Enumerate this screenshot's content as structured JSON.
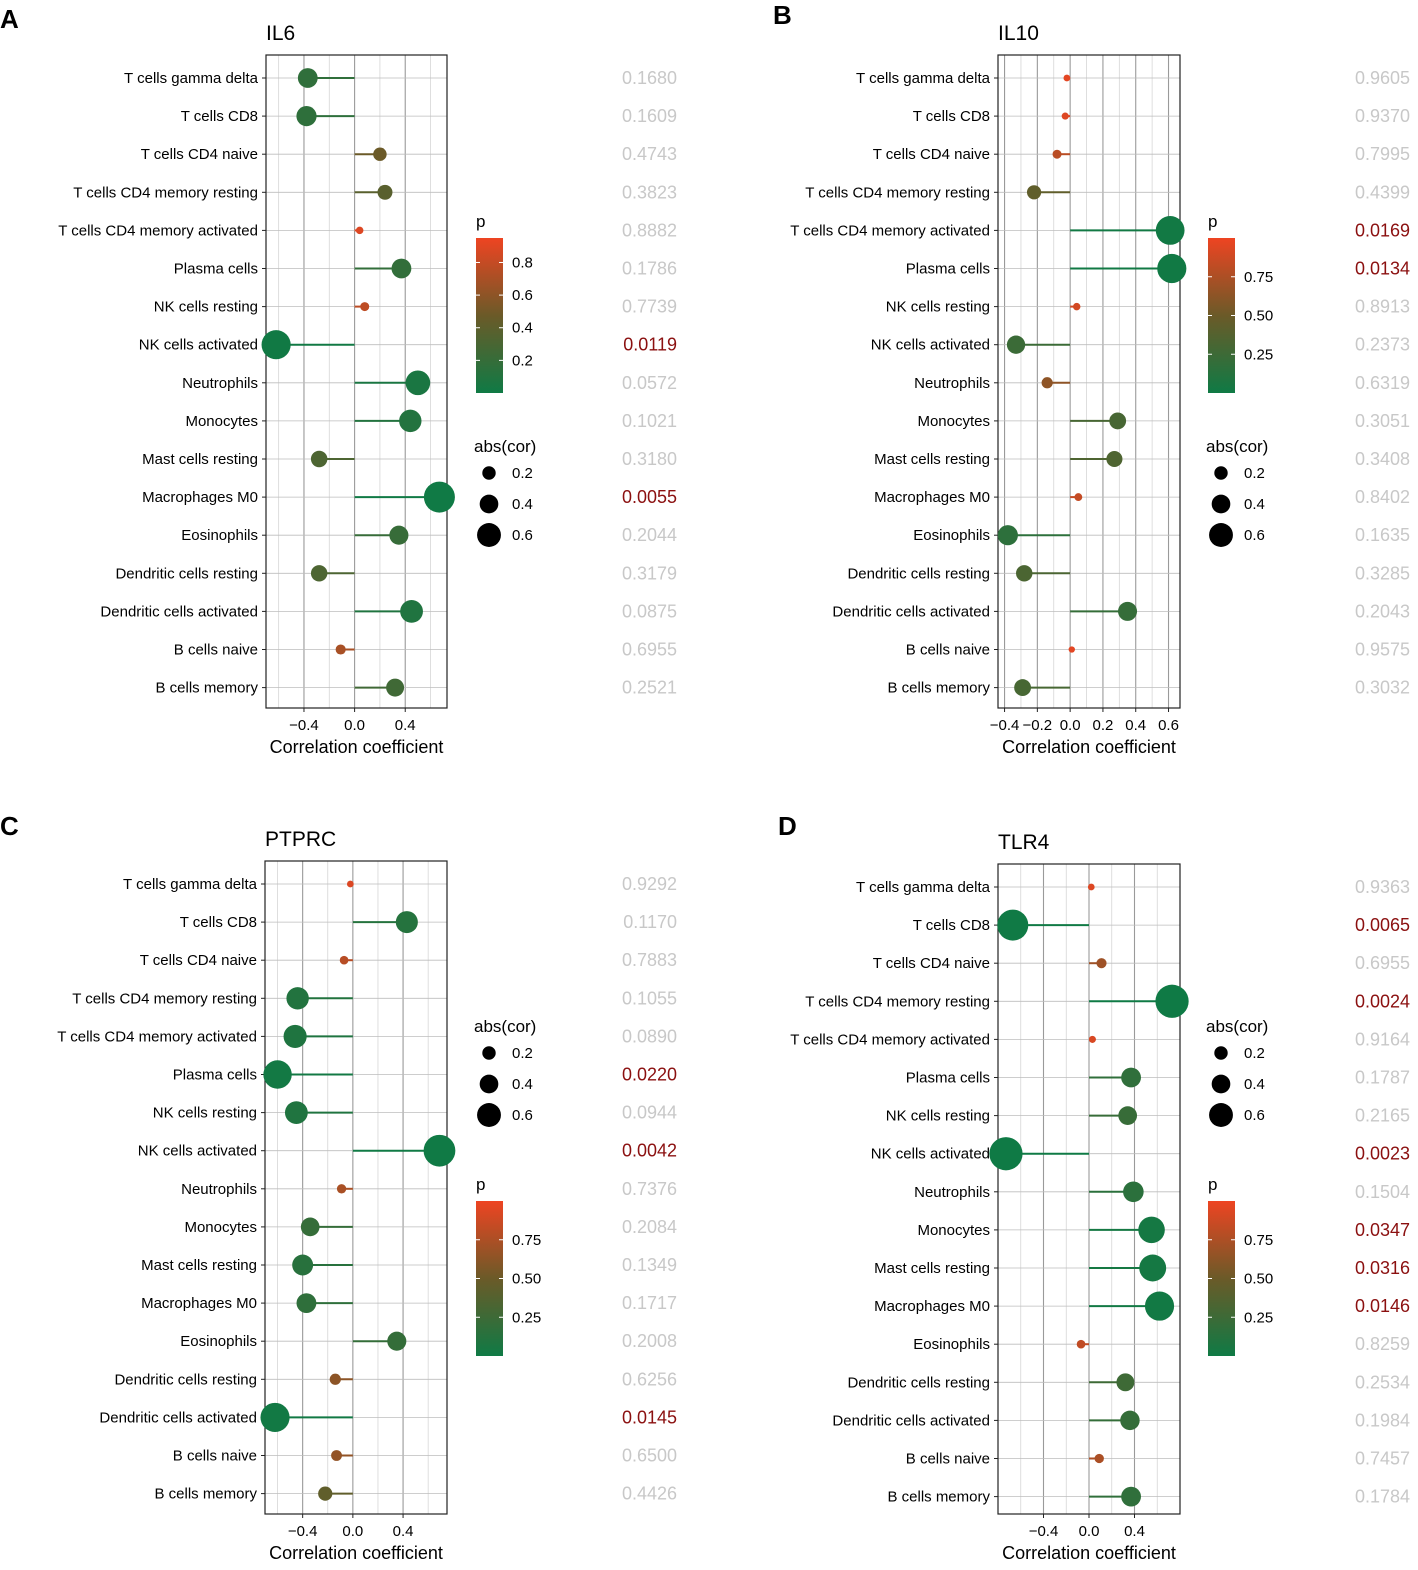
{
  "colors": {
    "p_high": "#ee4422",
    "p_mid": "#6b5a28",
    "p_low": "#0f7a45",
    "pval_significant": "#8b1010",
    "pval_nonsignificant": "#c8c8c8"
  },
  "chart_data": [
    {
      "panel": "A",
      "type": "lollipop",
      "title": "IL6",
      "xlabel": "Correlation coefficient",
      "xlim": [
        -0.7,
        0.73
      ],
      "xticks": [
        -0.4,
        0.0,
        0.4
      ],
      "xtick_labels": [
        "−0.4",
        "0.0",
        "0.4"
      ],
      "color_max": 0.95,
      "legend_order": [
        "p",
        "size"
      ],
      "p_legend": {
        "title": "p",
        "ticks": [
          0.8,
          0.6,
          0.4,
          0.2
        ],
        "tick_labels": [
          "0.8",
          "0.6",
          "0.4",
          "0.2"
        ]
      },
      "size_legend": {
        "title": "abs(cor)",
        "values": [
          0.2,
          0.4,
          0.6
        ],
        "labels": [
          "0.2",
          "0.4",
          "0.6"
        ]
      },
      "categories": [
        "T cells gamma delta",
        "T cells CD8",
        "T cells CD4 naive",
        "T cells CD4 memory resting",
        "T cells CD4 memory activated",
        "Plasma cells",
        "NK cells resting",
        "NK cells activated",
        "Neutrophils",
        "Monocytes",
        "Mast cells resting",
        "Macrophages M0",
        "Eosinophils",
        "Dendritic cells resting",
        "Dendritic cells activated",
        "B cells naive",
        "B cells memory"
      ],
      "cor": [
        -0.37,
        -0.38,
        0.2,
        0.24,
        0.04,
        0.37,
        0.08,
        -0.62,
        0.5,
        0.44,
        -0.28,
        0.67,
        0.35,
        -0.28,
        0.45,
        -0.11,
        0.32
      ],
      "p_values": [
        0.168,
        0.1609,
        0.4743,
        0.3823,
        0.8882,
        0.1786,
        0.7739,
        0.0119,
        0.0572,
        0.1021,
        0.318,
        0.0055,
        0.2044,
        0.3179,
        0.0875,
        0.6955,
        0.2521
      ],
      "p_labels": [
        "0.1680",
        "0.1609",
        "0.4743",
        "0.3823",
        "0.8882",
        "0.1786",
        "0.7739",
        "0.0119",
        "0.0572",
        "0.1021",
        "0.3180",
        "0.0055",
        "0.2044",
        "0.3179",
        "0.0875",
        "0.6955",
        "0.2521"
      ]
    },
    {
      "panel": "B",
      "type": "lollipop",
      "title": "IL10",
      "xlabel": "Correlation coefficient",
      "xlim": [
        -0.44,
        0.67
      ],
      "xticks": [
        -0.4,
        -0.2,
        0.0,
        0.2,
        0.4,
        0.6
      ],
      "xtick_labels": [
        "−0.4",
        "−0.2",
        "0.0",
        "0.2",
        "0.4",
        "0.6"
      ],
      "color_max": 1.0,
      "legend_order": [
        "p",
        "size"
      ],
      "p_legend": {
        "title": "p",
        "ticks": [
          0.75,
          0.5,
          0.25
        ],
        "tick_labels": [
          "0.75",
          "0.50",
          "0.25"
        ]
      },
      "size_legend": {
        "title": "abs(cor)",
        "values": [
          0.2,
          0.4,
          0.6
        ],
        "labels": [
          "0.2",
          "0.4",
          "0.6"
        ]
      },
      "categories": [
        "T cells gamma delta",
        "T cells CD8",
        "T cells CD4 naive",
        "T cells CD4 memory resting",
        "T cells CD4 memory activated",
        "Plasma cells",
        "NK cells resting",
        "NK cells activated",
        "Neutrophils",
        "Monocytes",
        "Mast cells resting",
        "Macrophages M0",
        "Eosinophils",
        "Dendritic cells resting",
        "Dendritic cells activated",
        "B cells naive",
        "B cells memory"
      ],
      "cor": [
        -0.02,
        -0.03,
        -0.08,
        -0.22,
        0.61,
        0.62,
        0.04,
        -0.33,
        -0.14,
        0.29,
        0.27,
        0.05,
        -0.38,
        -0.28,
        0.35,
        0.01,
        -0.29
      ],
      "p_values": [
        0.9605,
        0.937,
        0.7995,
        0.4399,
        0.0169,
        0.0134,
        0.8913,
        0.2373,
        0.6319,
        0.3051,
        0.3408,
        0.8402,
        0.1635,
        0.3285,
        0.2043,
        0.9575,
        0.3032
      ],
      "p_labels": [
        "0.9605",
        "0.9370",
        "0.7995",
        "0.4399",
        "0.0169",
        "0.0134",
        "0.8913",
        "0.2373",
        "0.6319",
        "0.3051",
        "0.3408",
        "0.8402",
        "0.1635",
        "0.3285",
        "0.2043",
        "0.9575",
        "0.3032"
      ]
    },
    {
      "panel": "C",
      "type": "lollipop",
      "title": "PTPRC",
      "xlabel": "Correlation coefficient",
      "xlim": [
        -0.7,
        0.75
      ],
      "xticks": [
        -0.4,
        0.0,
        0.4
      ],
      "xtick_labels": [
        "−0.4",
        "0.0",
        "0.4"
      ],
      "color_max": 1.0,
      "legend_order": [
        "size",
        "p"
      ],
      "p_legend": {
        "title": "p",
        "ticks": [
          0.75,
          0.5,
          0.25
        ],
        "tick_labels": [
          "0.75",
          "0.50",
          "0.25"
        ]
      },
      "size_legend": {
        "title": "abs(cor)",
        "values": [
          0.2,
          0.4,
          0.6
        ],
        "labels": [
          "0.2",
          "0.4",
          "0.6"
        ]
      },
      "categories": [
        "T cells gamma delta",
        "T cells CD8",
        "T cells CD4 naive",
        "T cells CD4 memory resting",
        "T cells CD4 memory activated",
        "Plasma cells",
        "NK cells resting",
        "NK cells activated",
        "Neutrophils",
        "Monocytes",
        "Mast cells resting",
        "Macrophages M0",
        "Eosinophils",
        "Dendritic cells resting",
        "Dendritic cells activated",
        "B cells naive",
        "B cells memory"
      ],
      "cor": [
        -0.02,
        0.43,
        -0.07,
        -0.44,
        -0.46,
        -0.6,
        -0.45,
        0.69,
        -0.09,
        -0.34,
        -0.4,
        -0.37,
        0.35,
        -0.14,
        -0.62,
        -0.13,
        -0.22
      ],
      "p_values": [
        0.9292,
        0.117,
        0.7883,
        0.1055,
        0.089,
        0.022,
        0.0944,
        0.0042,
        0.7376,
        0.2084,
        0.1349,
        0.1717,
        0.2008,
        0.6256,
        0.0145,
        0.65,
        0.4426
      ],
      "p_labels": [
        "0.9292",
        "0.1170",
        "0.7883",
        "0.1055",
        "0.0890",
        "0.0220",
        "0.0944",
        "0.0042",
        "0.7376",
        "0.2084",
        "0.1349",
        "0.1717",
        "0.2008",
        "0.6256",
        "0.0145",
        "0.6500",
        "0.4426"
      ]
    },
    {
      "panel": "D",
      "type": "lollipop",
      "title": "TLR4",
      "xlabel": "Correlation coefficient",
      "xlim": [
        -0.8,
        0.8
      ],
      "xticks": [
        -0.4,
        0.0,
        0.4
      ],
      "xtick_labels": [
        "−0.4",
        "0.0",
        "0.4"
      ],
      "color_max": 1.0,
      "legend_order": [
        "size",
        "p"
      ],
      "p_legend": {
        "title": "p",
        "ticks": [
          0.75,
          0.5,
          0.25
        ],
        "tick_labels": [
          "0.75",
          "0.50",
          "0.25"
        ]
      },
      "size_legend": {
        "title": "abs(cor)",
        "values": [
          0.2,
          0.4,
          0.6
        ],
        "labels": [
          "0.2",
          "0.4",
          "0.6"
        ]
      },
      "categories": [
        "T cells gamma delta",
        "T cells CD8",
        "T cells CD4 naive",
        "T cells CD4 memory resting",
        "T cells CD4 memory activated",
        "Plasma cells",
        "NK cells resting",
        "NK cells activated",
        "Neutrophils",
        "Monocytes",
        "Mast cells resting",
        "Macrophages M0",
        "Eosinophils",
        "Dendritic cells resting",
        "Dendritic cells activated",
        "B cells naive",
        "B cells memory"
      ],
      "cor": [
        0.02,
        -0.67,
        0.11,
        0.73,
        0.03,
        0.37,
        0.34,
        -0.73,
        0.39,
        0.55,
        0.56,
        0.62,
        -0.07,
        0.32,
        0.36,
        0.09,
        0.37
      ],
      "p_values": [
        0.9363,
        0.0065,
        0.6955,
        0.0024,
        0.9164,
        0.1787,
        0.2165,
        0.0023,
        0.1504,
        0.0347,
        0.0316,
        0.0146,
        0.8259,
        0.2534,
        0.1984,
        0.7457,
        0.1784
      ],
      "p_labels": [
        "0.9363",
        "0.0065",
        "0.6955",
        "0.0024",
        "0.9164",
        "0.1787",
        "0.2165",
        "0.0023",
        "0.1504",
        "0.0347",
        "0.0316",
        "0.0146",
        "0.8259",
        "0.2534",
        "0.1984",
        "0.7457",
        "0.1784"
      ]
    }
  ]
}
